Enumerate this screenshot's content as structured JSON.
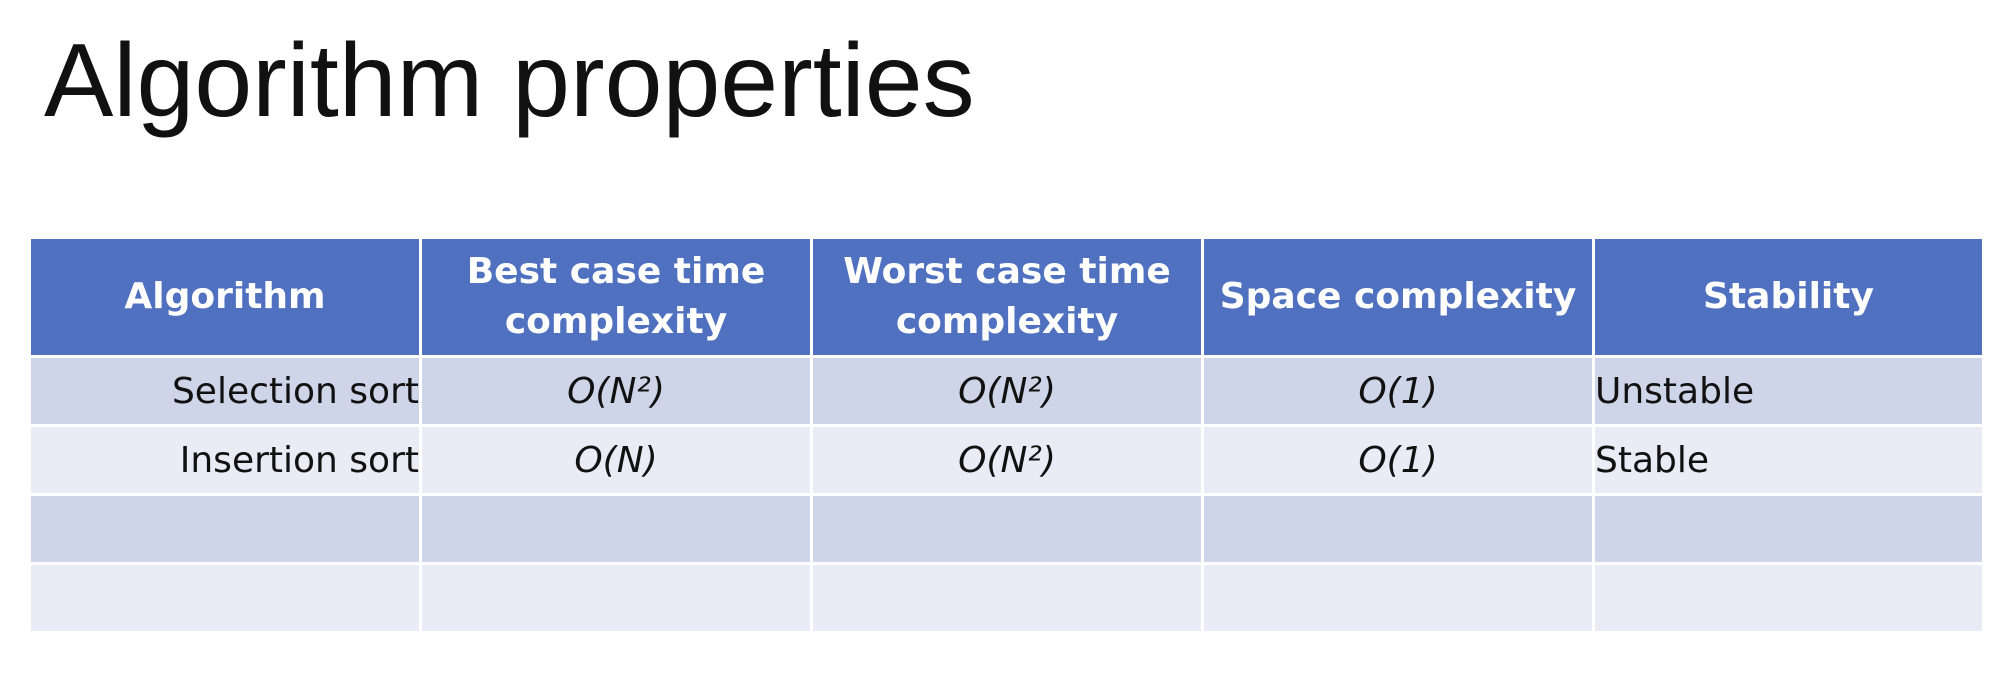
{
  "slide": {
    "title": "Algorithm properties"
  },
  "table": {
    "headers": [
      "Algorithm",
      "Best case time complexity",
      "Worst case time complexity",
      "Space complexity",
      "Stability"
    ],
    "rows": [
      {
        "algorithm": "Selection sort",
        "best_case": "O(N²)",
        "worst_case": "O(N²)",
        "space": "O(1)",
        "stability": "Unstable"
      },
      {
        "algorithm": "Insertion sort",
        "best_case": "O(N)",
        "worst_case": "O(N²)",
        "space": "O(1)",
        "stability": "Stable"
      },
      {
        "algorithm": "",
        "best_case": "",
        "worst_case": "",
        "space": "",
        "stability": ""
      },
      {
        "algorithm": "",
        "best_case": "",
        "worst_case": "",
        "space": "",
        "stability": ""
      }
    ]
  },
  "colors": {
    "header_bg": "#4f71bf",
    "row_band_dark": "#cfd5e8",
    "row_band_light": "#e9ecf5",
    "text": "#111111",
    "header_text": "#ffffff"
  }
}
